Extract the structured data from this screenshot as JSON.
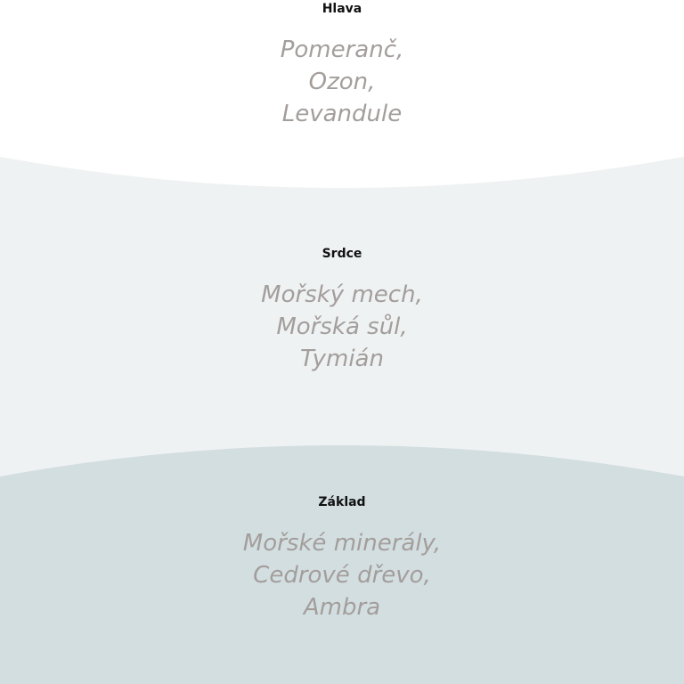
{
  "colors": {
    "top": "#ffffff",
    "middle": "#eff2f3",
    "base": "#d3dee1",
    "label": "#111111",
    "notes": "#a39e9b"
  },
  "tiers": [
    {
      "label": "Hlava",
      "notes": [
        "Pomeranč,",
        "Ozon,",
        "Levandule"
      ]
    },
    {
      "label": "Srdce",
      "notes": [
        "Mořský mech,",
        "Mořská sůl,",
        "Tymián"
      ]
    },
    {
      "label": "Základ",
      "notes": [
        "Mořské minerály,",
        "Cedrové dřevo,",
        "Ambra"
      ]
    }
  ]
}
